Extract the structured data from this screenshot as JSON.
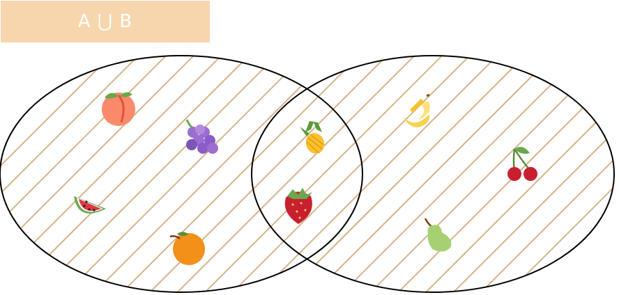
{
  "title": "A ⋃ B",
  "colors": {
    "title_bg": "#f8d6ad",
    "hatch": "#d4b38a",
    "outline": "#000000"
  },
  "sets": [
    {
      "name": "A",
      "fruits": [
        "peach",
        "grapes",
        "watermelon",
        "orange"
      ]
    },
    {
      "name": "B",
      "fruits": [
        "banana",
        "cherries",
        "pear"
      ]
    }
  ],
  "intersection": [
    "pineapple",
    "strawberry"
  ]
}
